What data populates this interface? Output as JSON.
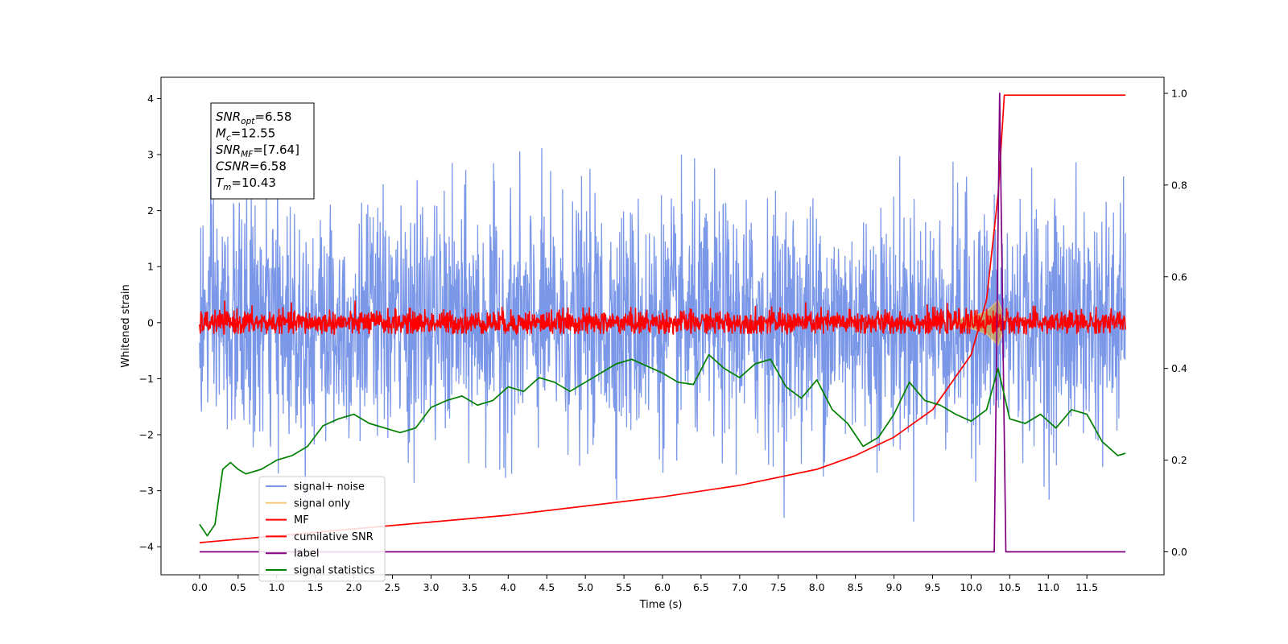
{
  "chart_data": {
    "type": "line",
    "xlabel": "Time (s)",
    "ylabel_left": "Whitened strain",
    "xlim": [
      -0.5,
      12.5
    ],
    "ylim_left": [
      -4.5,
      4.38
    ],
    "ylim_right": [
      -0.05,
      1.035
    ],
    "xticks": [
      "0.0",
      "0.5",
      "1.0",
      "1.5",
      "2.0",
      "2.5",
      "3.0",
      "3.5",
      "4.0",
      "4.5",
      "5.0",
      "5.5",
      "6.0",
      "6.5",
      "7.0",
      "7.5",
      "8.0",
      "8.5",
      "9.0",
      "9.5",
      "10.0",
      "10.5",
      "11.0",
      "11.5"
    ],
    "yticks_left": [
      "4",
      "3",
      "2",
      "1",
      "0",
      "−1",
      "−2",
      "−3",
      "−4"
    ],
    "yticks_right": [
      "1.0",
      "0.8",
      "0.6",
      "0.4",
      "0.2",
      "0.0"
    ],
    "grid": false,
    "legend_position": "lower-left",
    "info_box": [
      {
        "base": "SNR",
        "sub": "opt",
        "value": "=6.58"
      },
      {
        "base": "M",
        "sub": "c",
        "value": "=12.55"
      },
      {
        "base": "SNR",
        "sub": "MF",
        "value": "=[7.64]"
      },
      {
        "base": "CSNR",
        "sub": "",
        "value": "=6.58"
      },
      {
        "base": "T",
        "sub": "m",
        "value": "=10.43"
      }
    ],
    "series": [
      {
        "name": "signal+ noise",
        "color": "#7b97e8",
        "axis": "left",
        "description_values": {
          "x_range": [
            0,
            12
          ],
          "amplitude_range": [
            -4.15,
            3.98
          ]
        }
      },
      {
        "name": "signal only",
        "color": "#f5c97a",
        "axis": "left",
        "values": {
          "x": [
            9.8,
            10.0,
            10.2,
            10.35,
            10.45
          ],
          "upper": [
            0.05,
            0.1,
            0.2,
            0.4,
            0.0
          ],
          "lower": [
            -0.05,
            -0.1,
            -0.2,
            -0.4,
            0.0
          ]
        }
      },
      {
        "name": "MF",
        "color": "#ff0000",
        "axis": "left",
        "description_values": {
          "x_range": [
            0,
            12
          ],
          "amplitude_range": [
            -0.2,
            0.5
          ]
        }
      },
      {
        "name": "cumilative SNR",
        "color": "#ff0000",
        "axis": "right",
        "x": [
          0,
          1,
          2,
          3,
          4,
          5,
          6,
          7,
          8,
          8.5,
          9,
          9.5,
          10,
          10.2,
          10.35,
          10.43,
          12
        ],
        "y": [
          0.02,
          0.035,
          0.05,
          0.065,
          0.08,
          0.1,
          0.12,
          0.145,
          0.18,
          0.21,
          0.25,
          0.31,
          0.43,
          0.55,
          0.78,
          0.996,
          0.996
        ]
      },
      {
        "name": "label",
        "color": "#800080",
        "axis": "right",
        "x": [
          0,
          10.3,
          10.37,
          10.45,
          12
        ],
        "y": [
          0,
          0,
          1.0,
          0,
          0
        ]
      },
      {
        "name": "signal statistics",
        "color": "#008000",
        "axis": "right",
        "x": [
          0,
          0.1,
          0.2,
          0.3,
          0.4,
          0.5,
          0.6,
          0.7,
          0.8,
          0.9,
          1.0,
          1.2,
          1.4,
          1.6,
          1.8,
          2.0,
          2.2,
          2.4,
          2.6,
          2.8,
          3.0,
          3.2,
          3.4,
          3.6,
          3.8,
          4.0,
          4.2,
          4.4,
          4.6,
          4.8,
          5.0,
          5.2,
          5.4,
          5.6,
          5.8,
          6.0,
          6.2,
          6.4,
          6.6,
          6.8,
          7.0,
          7.2,
          7.4,
          7.6,
          7.8,
          8.0,
          8.2,
          8.4,
          8.6,
          8.8,
          9.0,
          9.2,
          9.4,
          9.6,
          9.8,
          10.0,
          10.2,
          10.35,
          10.5,
          10.7,
          10.9,
          11.1,
          11.3,
          11.5,
          11.7,
          11.9,
          12.0
        ],
        "y": [
          0.06,
          0.035,
          0.06,
          0.18,
          0.195,
          0.18,
          0.17,
          0.175,
          0.18,
          0.19,
          0.2,
          0.21,
          0.23,
          0.275,
          0.29,
          0.3,
          0.28,
          0.27,
          0.26,
          0.27,
          0.315,
          0.33,
          0.34,
          0.32,
          0.33,
          0.36,
          0.35,
          0.38,
          0.37,
          0.35,
          0.37,
          0.39,
          0.41,
          0.42,
          0.405,
          0.39,
          0.37,
          0.365,
          0.43,
          0.4,
          0.38,
          0.41,
          0.42,
          0.36,
          0.335,
          0.375,
          0.31,
          0.28,
          0.23,
          0.25,
          0.3,
          0.37,
          0.33,
          0.32,
          0.3,
          0.285,
          0.31,
          0.4,
          0.29,
          0.28,
          0.3,
          0.27,
          0.31,
          0.3,
          0.24,
          0.21,
          0.215
        ]
      }
    ]
  }
}
